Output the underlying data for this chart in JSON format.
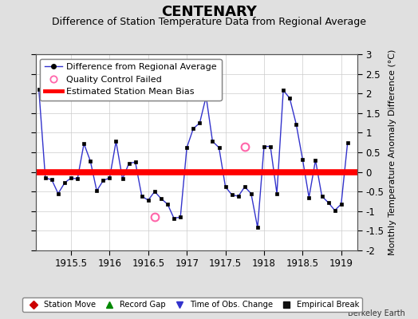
{
  "title": "CENTENARY",
  "subtitle": "Difference of Station Temperature Data from Regional Average",
  "ylabel": "Monthly Temperature Anomaly Difference (°C)",
  "bias_value": 0.0,
  "xlim": [
    1915.04,
    1919.21
  ],
  "ylim": [
    -2.0,
    3.0
  ],
  "yticks": [
    -2.0,
    -1.5,
    -1.0,
    -0.5,
    0.0,
    0.5,
    1.0,
    1.5,
    2.0,
    2.5,
    3.0
  ],
  "xtick_values": [
    1915.5,
    1916.0,
    1916.5,
    1917.0,
    1917.5,
    1918.0,
    1918.5,
    1919.0
  ],
  "xtick_labels": [
    "1915.5",
    "1916",
    "1916.5",
    "1917",
    "1917.5",
    "1918",
    "1918.5",
    "1919"
  ],
  "background_color": "#e0e0e0",
  "plot_bg_color": "#ffffff",
  "line_color": "#3333cc",
  "bias_color": "#ff0000",
  "marker_color": "#000000",
  "qc_fail_color": "#ff66aa",
  "series_x": [
    1915.083,
    1915.167,
    1915.25,
    1915.333,
    1915.417,
    1915.5,
    1915.583,
    1915.667,
    1915.75,
    1915.833,
    1915.917,
    1916.0,
    1916.083,
    1916.167,
    1916.25,
    1916.333,
    1916.417,
    1916.5,
    1916.583,
    1916.667,
    1916.75,
    1916.833,
    1916.917,
    1917.0,
    1917.083,
    1917.167,
    1917.25,
    1917.333,
    1917.417,
    1917.5,
    1917.583,
    1917.667,
    1917.75,
    1917.833,
    1917.917,
    1918.0,
    1918.083,
    1918.167,
    1918.25,
    1918.333,
    1918.417,
    1918.5,
    1918.583,
    1918.667,
    1918.75,
    1918.833,
    1918.917,
    1919.0,
    1919.083
  ],
  "series_y": [
    2.1,
    -0.15,
    -0.2,
    -0.55,
    -0.28,
    -0.15,
    -0.18,
    0.72,
    0.28,
    -0.48,
    -0.22,
    -0.15,
    0.78,
    -0.18,
    0.22,
    0.25,
    -0.62,
    -0.72,
    -0.5,
    -0.68,
    -0.82,
    -1.18,
    -1.15,
    0.62,
    1.1,
    1.25,
    1.92,
    0.78,
    0.62,
    -0.38,
    -0.58,
    -0.62,
    -0.38,
    -0.55,
    -1.42,
    0.65,
    0.65,
    -0.55,
    2.08,
    1.88,
    1.22,
    0.32,
    -0.65,
    0.3,
    -0.62,
    -0.78,
    -0.98,
    -0.82,
    0.75
  ],
  "qc_fail_points": [
    [
      1916.583,
      -1.15
    ],
    [
      1917.75,
      0.65
    ]
  ],
  "legend_top": [
    {
      "label": "Difference from Regional Average",
      "color": "#3333cc",
      "type": "line_dot"
    },
    {
      "label": "Quality Control Failed",
      "color": "#ff66aa",
      "type": "circle_open"
    },
    {
      "label": "Estimated Station Mean Bias",
      "color": "#ff0000",
      "type": "hline"
    }
  ],
  "legend_bottom": [
    {
      "label": "Station Move",
      "color": "#cc0000",
      "marker": "D"
    },
    {
      "label": "Record Gap",
      "color": "#008800",
      "marker": "^"
    },
    {
      "label": "Time of Obs. Change",
      "color": "#3333cc",
      "marker": "v"
    },
    {
      "label": "Empirical Break",
      "color": "#111111",
      "marker": "s"
    }
  ],
  "title_fontsize": 13,
  "subtitle_fontsize": 9,
  "tick_fontsize": 8.5,
  "legend_fontsize": 8,
  "ylabel_fontsize": 8
}
